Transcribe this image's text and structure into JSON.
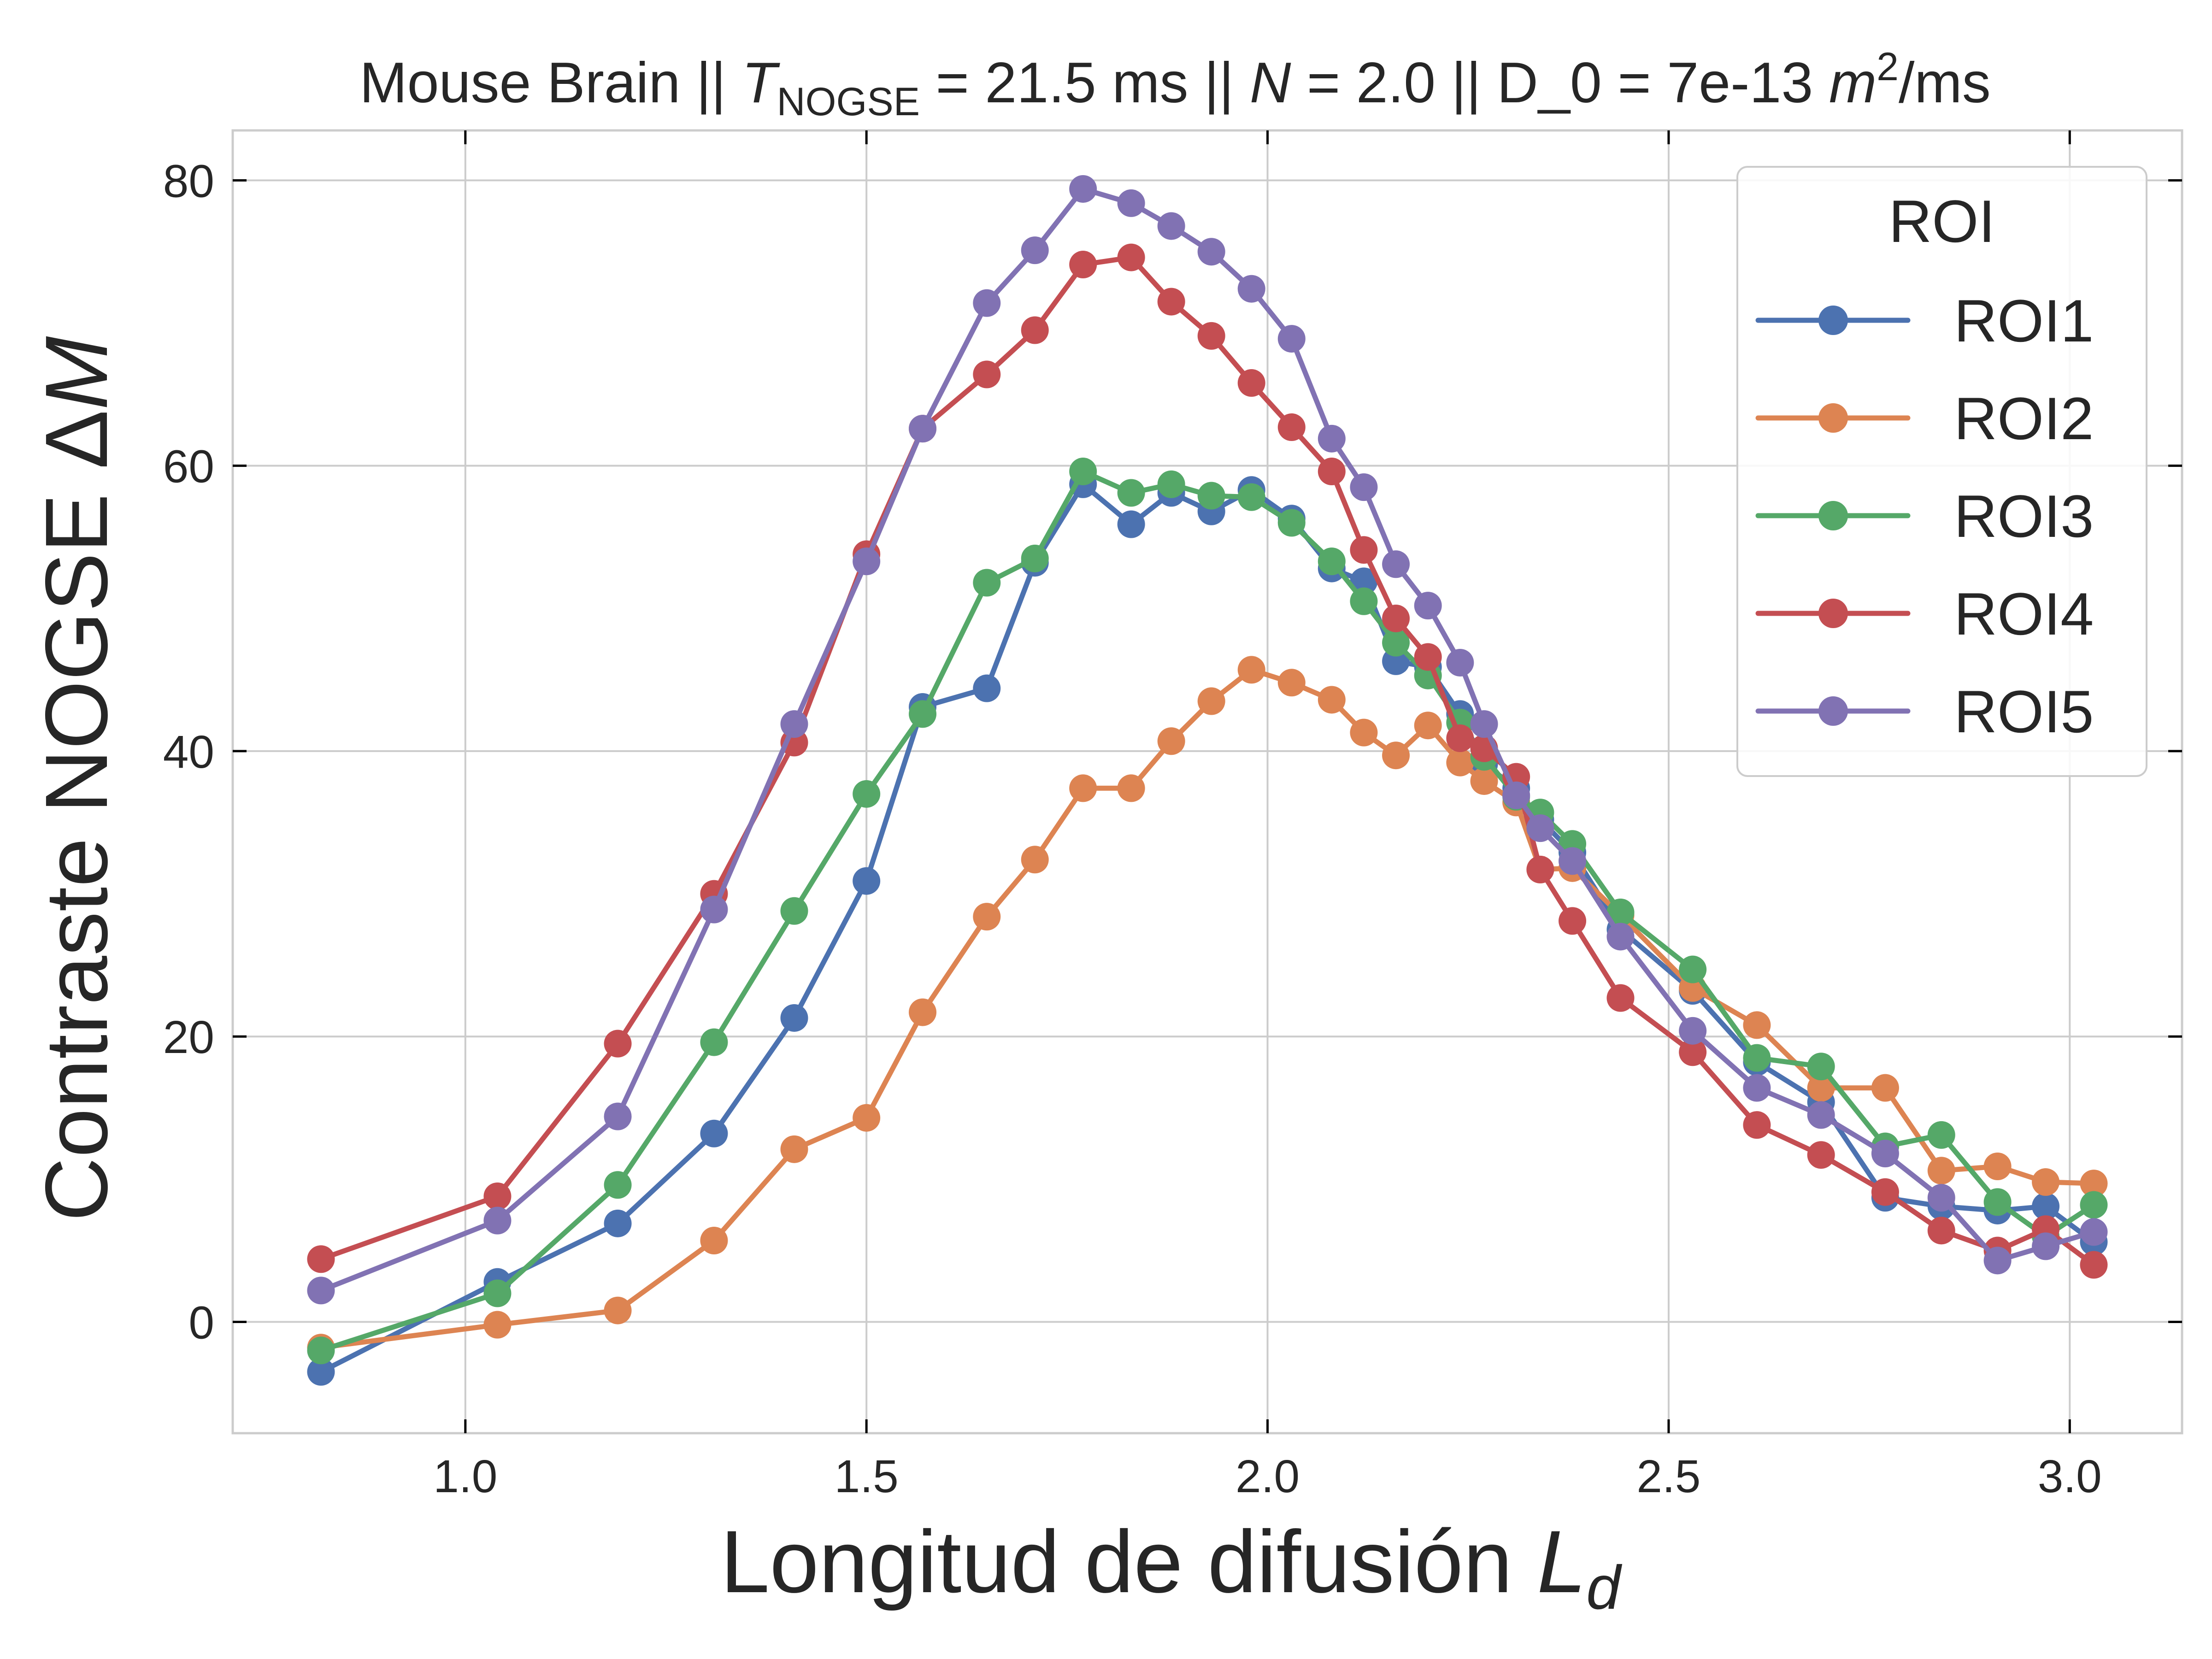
{
  "chart_data": {
    "type": "line",
    "title_parts": {
      "prefix": "Mouse Brain || ",
      "t_symbol": "T",
      "t_subscript": "NOGSE",
      "t_rest": " = 21.5 ms || ",
      "n_symbol": "N",
      "n_rest": " = 2.0 || D_0 = 7e-13 ",
      "m_symbol": "m",
      "m_sup": "2",
      "units_tail": "/ms"
    },
    "xlabel": "Longitud de difusión ",
    "xlabel_symbol": "L",
    "xlabel_sub": "d",
    "ylabel": "Contraste NOGSE Δ",
    "ylabel_symbol": "M",
    "xlim": [
      0.71,
      3.14
    ],
    "ylim": [
      -7.8,
      83.5
    ],
    "xticks": [
      1.0,
      1.5,
      2.0,
      2.5,
      3.0
    ],
    "xtick_labels": [
      "1.0",
      "1.5",
      "2.0",
      "2.5",
      "3.0"
    ],
    "yticks": [
      0,
      20,
      40,
      60,
      80
    ],
    "ytick_labels": [
      "0",
      "20",
      "40",
      "60",
      "80"
    ],
    "grid": true,
    "legend_title": "ROI",
    "legend_position": "top-right",
    "x": [
      0.82,
      1.04,
      1.19,
      1.31,
      1.41,
      1.5,
      1.57,
      1.65,
      1.71,
      1.77,
      1.83,
      1.88,
      1.93,
      1.98,
      2.03,
      2.08,
      2.12,
      2.16,
      2.2,
      2.24,
      2.27,
      2.31,
      2.34,
      2.38,
      2.44,
      2.53,
      2.61,
      2.69,
      2.77,
      2.84,
      2.91,
      2.97,
      3.03
    ],
    "series": [
      {
        "name": "ROI1",
        "color": "#4c72b0",
        "values": [
          -3.5,
          2.8,
          6.9,
          13.2,
          21.3,
          30.9,
          43.1,
          44.4,
          53.2,
          58.7,
          55.9,
          58.1,
          56.8,
          58.3,
          56.3,
          52.8,
          51.9,
          46.3,
          45.9,
          42.6,
          39.1,
          37.4,
          35.2,
          32.9,
          27.5,
          23.2,
          18.2,
          15.4,
          8.7,
          8.1,
          7.8,
          8.1,
          5.6
        ]
      },
      {
        "name": "ROI2",
        "color": "#dd8452",
        "values": [
          -1.8,
          -0.2,
          0.8,
          5.7,
          12.1,
          14.3,
          21.7,
          28.4,
          32.4,
          37.4,
          37.4,
          40.7,
          43.5,
          45.7,
          44.8,
          43.6,
          41.3,
          39.7,
          41.8,
          39.2,
          37.9,
          36.4,
          31.7,
          31.8,
          28.5,
          23.4,
          20.8,
          16.4,
          16.4,
          10.6,
          10.9,
          9.8,
          9.7
        ]
      },
      {
        "name": "ROI3",
        "color": "#55a868",
        "values": [
          -2.0,
          2.0,
          9.6,
          19.6,
          28.8,
          37.0,
          42.6,
          51.8,
          53.5,
          59.6,
          58.1,
          58.7,
          57.9,
          57.8,
          56.0,
          53.3,
          50.5,
          47.6,
          45.3,
          42.0,
          39.6,
          36.8,
          35.7,
          33.5,
          28.7,
          24.7,
          18.5,
          17.9,
          12.3,
          13.1,
          8.4,
          6.0,
          8.2
        ]
      },
      {
        "name": "ROI4",
        "color": "#c44e52",
        "values": [
          4.4,
          8.8,
          19.5,
          30.0,
          40.6,
          53.8,
          62.6,
          66.4,
          69.5,
          74.1,
          74.6,
          71.5,
          69.1,
          65.8,
          62.7,
          59.6,
          54.1,
          49.3,
          46.6,
          40.9,
          40.2,
          38.2,
          31.7,
          28.1,
          22.7,
          18.9,
          13.8,
          11.7,
          9.1,
          6.4,
          5.0,
          6.5,
          4.0
        ]
      },
      {
        "name": "ROI5",
        "color": "#8172b3",
        "values": [
          2.2,
          7.1,
          14.4,
          28.9,
          41.9,
          53.3,
          62.6,
          71.4,
          75.1,
          79.4,
          78.4,
          76.8,
          75.0,
          72.4,
          68.9,
          61.9,
          58.5,
          53.1,
          50.2,
          46.2,
          41.9,
          36.9,
          34.6,
          32.3,
          27.0,
          20.4,
          16.4,
          14.5,
          11.8,
          8.7,
          4.3,
          5.3,
          6.3
        ]
      }
    ]
  }
}
